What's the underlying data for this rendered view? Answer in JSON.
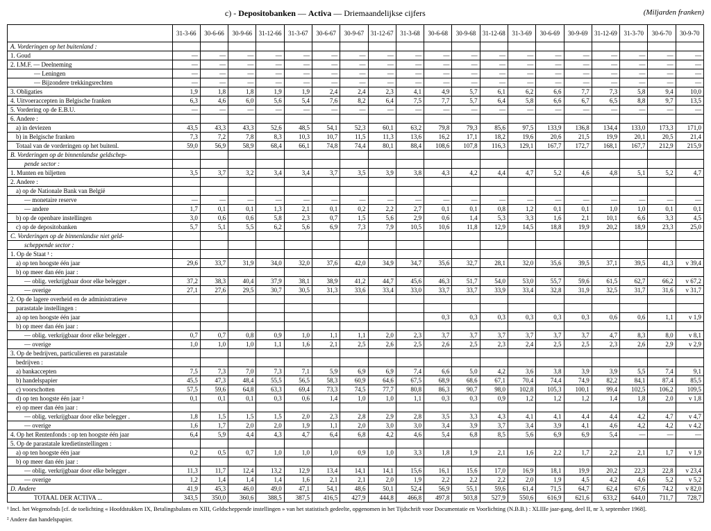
{
  "title_prefix": "c) - ",
  "title_bold1": "Depositobanken",
  "title_sep": " — ",
  "title_bold2": "Activa",
  "title_suffix": " — Driemaandelijkse cijfers",
  "title_right": "(Miljarden franken)",
  "headers": [
    "31-3-66",
    "30-6-66",
    "30-9-66",
    "31-12-66",
    "31-3-67",
    "30-6-67",
    "30-9-67",
    "31-12-67",
    "31-3-68",
    "30-6-68",
    "30-9-68",
    "31-12-68",
    "31-3-69",
    "30-6-69",
    "30-9-69",
    "31-12-69",
    "31-3-70",
    "30-6-70",
    "30-9-70"
  ],
  "rows": [
    {
      "label": "A. Vorderingen op het buitenland :",
      "italic": true,
      "indent": 0,
      "vals": []
    },
    {
      "label": "1. Goud",
      "indent": 0,
      "dots": true,
      "vals": [
        "—",
        "—",
        "—",
        "—",
        "—",
        "—",
        "—",
        "—",
        "—",
        "—",
        "—",
        "—",
        "—",
        "—",
        "—",
        "—",
        "—",
        "—",
        "—"
      ]
    },
    {
      "label": "2. I.M.F. — Deelneming",
      "indent": 0,
      "dots": true,
      "vals": [
        "—",
        "—",
        "—",
        "—",
        "—",
        "—",
        "—",
        "—",
        "—",
        "—",
        "—",
        "—",
        "—",
        "—",
        "—",
        "—",
        "—",
        "—",
        "—"
      ]
    },
    {
      "label": "— Leningen",
      "indent": 3,
      "dots": true,
      "vals": [
        "—",
        "—",
        "—",
        "—",
        "—",
        "—",
        "—",
        "—",
        "—",
        "—",
        "—",
        "—",
        "—",
        "—",
        "—",
        "—",
        "—",
        "—",
        "—"
      ]
    },
    {
      "label": "— Bijzondere trekkingsrechten",
      "indent": 3,
      "dots": true,
      "vals": [
        "—",
        "—",
        "—",
        "—",
        "—",
        "—",
        "—",
        "—",
        "—",
        "—",
        "—",
        "—",
        "—",
        "—",
        "—",
        "—",
        "—",
        "—",
        "—"
      ]
    },
    {
      "label": "3. Obligaties",
      "indent": 0,
      "dots": true,
      "vals": [
        "1,9",
        "1,8",
        "1,8",
        "1,9",
        "1,9",
        "2,4",
        "2,4",
        "2,3",
        "4,1",
        "4,9",
        "5,7",
        "6,1",
        "6,2",
        "6,6",
        "7,7",
        "7,3",
        "5,8",
        "9,4",
        "10,0"
      ]
    },
    {
      "label": "4. Uitvoeraccepten in Belgische franken",
      "indent": 0,
      "dots": true,
      "vals": [
        "6,3",
        "4,6",
        "6,0",
        "5,6",
        "5,4",
        "7,6",
        "8,2",
        "6,4",
        "7,5",
        "7,7",
        "5,7",
        "6,4",
        "5,8",
        "6,6",
        "6,7",
        "6,5",
        "8,8",
        "9,7",
        "13,5"
      ]
    },
    {
      "label": "5. Vordering op de E.B.U.",
      "indent": 0,
      "dots": true,
      "vals": [
        "—",
        "—",
        "—",
        "—",
        "—",
        "—",
        "—",
        "—",
        "—",
        "—",
        "—",
        "—",
        "—",
        "—",
        "—",
        "—",
        "—",
        "—",
        "—"
      ]
    },
    {
      "label": "6. Andere :",
      "indent": 0,
      "vals": []
    },
    {
      "label": "a) in deviezen",
      "indent": 1,
      "dots": true,
      "vals": [
        "43,5",
        "43,3",
        "43,3",
        "52,6",
        "48,5",
        "54,1",
        "52,3",
        "60,1",
        "63,2",
        "79,8",
        "79,3",
        "85,6",
        "97,5",
        "133,9",
        "136,8",
        "134,4",
        "133,0",
        "173,3",
        "171,0"
      ]
    },
    {
      "label": "b) in Belgische franken",
      "indent": 1,
      "dots": true,
      "vals": [
        "7,3",
        "7,2",
        "7,8",
        "8,3",
        "10,3",
        "10,7",
        "11,5",
        "11,3",
        "13,6",
        "16,2",
        "17,1",
        "18,2",
        "19,6",
        "20,6",
        "21,5",
        "19,9",
        "20,1",
        "20,5",
        "21,4"
      ]
    },
    {
      "label": "Totaal van de vorderingen op het buitenl.",
      "indent": 1,
      "vals": [
        "59,0",
        "56,9",
        "58,9",
        "68,4",
        "66,1",
        "74,8",
        "74,4",
        "80,1",
        "88,4",
        "108,6",
        "107,8",
        "116,3",
        "129,1",
        "167,7",
        "172,7",
        "168,1",
        "167,7",
        "212,9",
        "215,9"
      ]
    },
    {
      "label": "B. Vorderingen op de binnenlandse geldschep-",
      "italic": true,
      "indent": 0,
      "vals": []
    },
    {
      "label": "pende sector :",
      "italic": true,
      "indent": 2,
      "vals": []
    },
    {
      "label": "1. Munten en biljetten",
      "indent": 0,
      "dots": true,
      "vals": [
        "3,5",
        "3,7",
        "3,2",
        "3,4",
        "3,4",
        "3,7",
        "3,5",
        "3,9",
        "3,8",
        "4,3",
        "4,2",
        "4,4",
        "4,7",
        "5,2",
        "4,6",
        "4,8",
        "5,1",
        "5,2",
        "4,7"
      ]
    },
    {
      "label": "2. Andere :",
      "indent": 0,
      "vals": []
    },
    {
      "label": "a) op de Nationale Bank van België",
      "indent": 1,
      "dots": true,
      "vals": []
    },
    {
      "label": "— monetaire reserve",
      "indent": 2,
      "dots": true,
      "vals": [
        "—",
        "—",
        "—",
        "—",
        "—",
        "—",
        "—",
        "—",
        "—",
        "—",
        "—",
        "—",
        "—",
        "—",
        "—",
        "—",
        "—",
        "—",
        "—"
      ]
    },
    {
      "label": "— andere",
      "indent": 2,
      "dots": true,
      "vals": [
        "1,7",
        "0,1",
        "0,1",
        "1,3",
        "2,1",
        "0,1",
        "0,2",
        "2,2",
        "2,7",
        "0,1",
        "0,1",
        "0,8",
        "1,2",
        "0,1",
        "0,1",
        "1,0",
        "1,0",
        "0,1",
        "0,1"
      ]
    },
    {
      "label": "b) op de openbare instellingen",
      "indent": 1,
      "dots": true,
      "vals": [
        "3,0",
        "0,6",
        "0,6",
        "5,8",
        "2,3",
        "0,7",
        "1,5",
        "5,6",
        "2,9",
        "0,6",
        "1,4",
        "5,3",
        "3,3",
        "1,6",
        "2,1",
        "10,1",
        "6,6",
        "3,3",
        "4,5"
      ]
    },
    {
      "label": "c) op de depositobanken",
      "indent": 1,
      "dots": true,
      "vals": [
        "5,7",
        "5,1",
        "5,5",
        "6,2",
        "5,6",
        "6,9",
        "7,3",
        "7,9",
        "10,5",
        "10,6",
        "11,8",
        "12,9",
        "14,5",
        "18,8",
        "19,9",
        "20,2",
        "18,9",
        "23,3",
        "25,0"
      ]
    },
    {
      "label": "C. Vorderingen op de binnenlandse niet geld-",
      "italic": true,
      "indent": 0,
      "vals": []
    },
    {
      "label": "scheppende sector :",
      "italic": true,
      "indent": 2,
      "vals": []
    },
    {
      "label": "1. Op de Staat ¹ :",
      "indent": 0,
      "vals": []
    },
    {
      "label": "a) op ten hoogste één jaar",
      "indent": 1,
      "dots": true,
      "vals": [
        "29,6",
        "33,7",
        "31,9",
        "34,0",
        "32,0",
        "37,6",
        "42,0",
        "34,9",
        "34,7",
        "35,6",
        "32,7",
        "28,1",
        "32,0",
        "35,6",
        "39,5",
        "37,1",
        "39,5",
        "41,3",
        "v 39,4"
      ]
    },
    {
      "label": "b) op meer dan één jaar :",
      "indent": 1,
      "vals": []
    },
    {
      "label": "— oblig. verkrijgbaar door elke belegger .",
      "indent": 2,
      "vals": [
        "37,2",
        "38,3",
        "40,4",
        "37,9",
        "38,1",
        "38,9",
        "41,2",
        "44,7",
        "45,6",
        "46,3",
        "51,7",
        "54,0",
        "53,0",
        "55,7",
        "59,6",
        "61,5",
        "62,7",
        "66,2",
        "v 67,2"
      ]
    },
    {
      "label": "— overige",
      "indent": 2,
      "dots": true,
      "vals": [
        "27,1",
        "27,6",
        "29,5",
        "30,7",
        "30,5",
        "31,3",
        "33,6",
        "33,4",
        "33,0",
        "33,7",
        "33,7",
        "33,9",
        "33,4",
        "32,8",
        "31,9",
        "32,5",
        "31,7",
        "31,6",
        "v 31,7"
      ]
    },
    {
      "label": "2. Op de lagere overheid en de administratieve",
      "indent": 0,
      "vals": []
    },
    {
      "label": "parastatale instellingen :",
      "indent": 1,
      "vals": []
    },
    {
      "label": "a) op ten hoogste één jaar",
      "indent": 1,
      "dots": true,
      "vals": [
        "",
        "",
        "",
        "",
        "",
        "",
        "",
        "",
        "",
        "0,3",
        "0,3",
        "0,3",
        "0,3",
        "0,3",
        "0,3",
        "0,6",
        "0,6",
        "1,1",
        "v 1,9"
      ]
    },
    {
      "label": "b) op meer dan één jaar :",
      "indent": 1,
      "vals": []
    },
    {
      "label": "— oblig. verkrijgbaar door elke belegger .",
      "indent": 2,
      "vals": [
        "0,7",
        "0,7",
        "0,8",
        "0,9",
        "1,0",
        "1,1",
        "1,1",
        "2,0",
        "2,3",
        "3,7",
        "3,7",
        "3,7",
        "3,7",
        "3,7",
        "3,7",
        "4,7",
        "8,3",
        "8,0",
        "v 8,1"
      ]
    },
    {
      "label": "— overige",
      "indent": 2,
      "dots": true,
      "vals": [
        "1,0",
        "1,0",
        "1,0",
        "1,1",
        "1,6",
        "2,1",
        "2,5",
        "2,6",
        "2,5",
        "2,6",
        "2,5",
        "2,3",
        "2,4",
        "2,5",
        "2,5",
        "2,3",
        "2,6",
        "2,9",
        "v 2,9"
      ]
    },
    {
      "label": "3. Op de bedrijven, particulieren en parastatale",
      "indent": 0,
      "vals": []
    },
    {
      "label": "bedrijven :",
      "indent": 1,
      "vals": []
    },
    {
      "label": "a) bankaccepten",
      "indent": 1,
      "dots": true,
      "vals": [
        "7,5",
        "7,3",
        "7,0",
        "7,3",
        "7,1",
        "5,9",
        "6,9",
        "6,9",
        "7,4",
        "6,6",
        "5,0",
        "4,2",
        "3,6",
        "3,8",
        "3,9",
        "3,9",
        "5,5",
        "7,4",
        "9,1"
      ]
    },
    {
      "label": "b) handelspapier",
      "indent": 1,
      "dots": true,
      "vals": [
        "45,5",
        "47,3",
        "48,4",
        "55,5",
        "56,5",
        "58,3",
        "60,9",
        "64,6",
        "67,5",
        "68,9",
        "68,6",
        "67,1",
        "70,4",
        "74,4",
        "74,9",
        "82,2",
        "84,1",
        "87,4",
        "85,5"
      ]
    },
    {
      "label": "c) voorschotten",
      "indent": 1,
      "dots": true,
      "vals": [
        "57,5",
        "59,6",
        "64,8",
        "63,3",
        "69,4",
        "73,3",
        "74,5",
        "77,7",
        "80,8",
        "86,3",
        "90,7",
        "98,0",
        "102,8",
        "105,3",
        "100,1",
        "99,4",
        "102,5",
        "106,2",
        "109,5"
      ]
    },
    {
      "label": "d) op ten hoogste één jaar ²",
      "indent": 1,
      "dots": true,
      "vals": [
        "0,1",
        "0,1",
        "0,1",
        "0,3",
        "0,6",
        "1,4",
        "1,0",
        "1,0",
        "1,1",
        "0,3",
        "0,3",
        "0,9",
        "1,2",
        "1,2",
        "1,2",
        "1,4",
        "1,8",
        "2,0",
        "v 1,8"
      ]
    },
    {
      "label": "e) op meer dan één jaar :",
      "indent": 1,
      "vals": []
    },
    {
      "label": "— oblig. verkrijgbaar door elke belegger .",
      "indent": 2,
      "vals": [
        "1,8",
        "1,5",
        "1,5",
        "1,5",
        "2,0",
        "2,3",
        "2,8",
        "2,9",
        "2,8",
        "3,5",
        "3,3",
        "4,3",
        "4,1",
        "4,1",
        "4,4",
        "4,4",
        "4,2",
        "4,7",
        "v 4,7"
      ]
    },
    {
      "label": "— overige",
      "indent": 2,
      "dots": true,
      "vals": [
        "1,6",
        "1,7",
        "2,0",
        "2,0",
        "1,9",
        "1,1",
        "2,0",
        "3,0",
        "3,0",
        "3,4",
        "3,9",
        "3,7",
        "3,4",
        "3,9",
        "4,1",
        "4,6",
        "4,2",
        "4,2",
        "v 4,2"
      ]
    },
    {
      "label": "4. Op het Rentenfonds : op ten hoogste één jaar",
      "indent": 0,
      "vals": [
        "6,4",
        "5,9",
        "4,4",
        "4,3",
        "4,7",
        "6,4",
        "6,8",
        "4,2",
        "4,6",
        "5,4",
        "6,8",
        "8,5",
        "5,6",
        "6,9",
        "6,9",
        "5,4",
        "—",
        "—",
        "—"
      ]
    },
    {
      "label": "5. Op de parastatale kredietinstellingen :",
      "indent": 0,
      "vals": []
    },
    {
      "label": "a) op ten hoogste één jaar",
      "indent": 1,
      "dots": true,
      "vals": [
        "0,2",
        "0,5",
        "0,7",
        "1,0",
        "1,0",
        "1,0",
        "0,9",
        "1,0",
        "3,3",
        "1,8",
        "1,9",
        "2,1",
        "1,6",
        "2,2",
        "1,7",
        "2,2",
        "2,1",
        "1,7",
        "v 1,9"
      ]
    },
    {
      "label": "b) op meer dan één jaar :",
      "indent": 1,
      "vals": []
    },
    {
      "label": "— oblig. verkrijgbaar door elke belegger .",
      "indent": 2,
      "vals": [
        "11,3",
        "11,7",
        "12,4",
        "13,2",
        "12,9",
        "13,4",
        "14,1",
        "14,1",
        "15,6",
        "16,1",
        "15,6",
        "17,0",
        "16,9",
        "18,1",
        "19,9",
        "20,2",
        "22,3",
        "22,8",
        "v 23,4"
      ]
    },
    {
      "label": "— overige",
      "indent": 2,
      "dots": true,
      "vals": [
        "1,2",
        "1,4",
        "1,4",
        "1,4",
        "1,6",
        "2,1",
        "2,1",
        "2,0",
        "1,9",
        "2,2",
        "2,2",
        "2,2",
        "2,0",
        "1,9",
        "4,5",
        "4,2",
        "4,6",
        "5,2",
        "v 5,2"
      ]
    },
    {
      "label": "D. Andere",
      "italic": true,
      "indent": 0,
      "dots": true,
      "vals": [
        "41,9",
        "45,3",
        "46,0",
        "49,0",
        "47,1",
        "54,1",
        "48,6",
        "50,1",
        "52,4",
        "56,9",
        "55,1",
        "59,6",
        "61,4",
        "71,5",
        "64,7",
        "62,4",
        "67,6",
        "74,2",
        "v 82,0"
      ]
    },
    {
      "label": "TOTAAL DER ACTIVA ...",
      "indent": 3,
      "vals": [
        "343,5",
        "350,0",
        "360,6",
        "388,5",
        "387,5",
        "416,5",
        "427,9",
        "444,8",
        "466,8",
        "497,8",
        "503,8",
        "527,9",
        "550,6",
        "616,9",
        "621,6",
        "633,2",
        "644,0",
        "711,7",
        "728,7"
      ]
    }
  ],
  "footnote1": "¹ Incl. het Wegenofnds [cf. de toelichting « Hoofdstukken IX, Betalingsbalans en XIII, Geldscheppende instellingen » van het statistisch gedeelte, opgenomen in het Tijdschrift voor Documentatie en Voorlichting (N.B.B.) : XLIIIe jaar-gang, deel II, nr 3, september 1968].",
  "footnote2": "² Andere dan handelspapier."
}
